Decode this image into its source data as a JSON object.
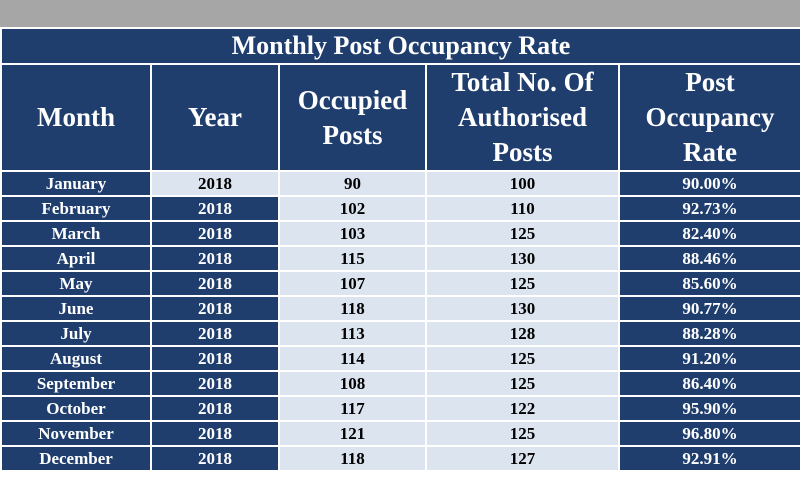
{
  "table": {
    "title": "Monthly Post Occupancy Rate",
    "headers": {
      "month": "Month",
      "year": "Year",
      "occupied": "Occupied Posts",
      "total": "Total No. Of Authorised Posts",
      "rate": "Post Occupancy Rate"
    },
    "rows": [
      {
        "month": "January",
        "year": "2018",
        "occupied": "90",
        "total": "100",
        "rate": "90.00%"
      },
      {
        "month": "February",
        "year": "2018",
        "occupied": "102",
        "total": "110",
        "rate": "92.73%"
      },
      {
        "month": "March",
        "year": "2018",
        "occupied": "103",
        "total": "125",
        "rate": "82.40%"
      },
      {
        "month": "April",
        "year": "2018",
        "occupied": "115",
        "total": "130",
        "rate": "88.46%"
      },
      {
        "month": "May",
        "year": "2018",
        "occupied": "107",
        "total": "125",
        "rate": "85.60%"
      },
      {
        "month": "June",
        "year": "2018",
        "occupied": "118",
        "total": "130",
        "rate": "90.77%"
      },
      {
        "month": "July",
        "year": "2018",
        "occupied": "113",
        "total": "128",
        "rate": "88.28%"
      },
      {
        "month": "August",
        "year": "2018",
        "occupied": "114",
        "total": "125",
        "rate": "91.20%"
      },
      {
        "month": "September",
        "year": "2018",
        "occupied": "108",
        "total": "125",
        "rate": "86.40%"
      },
      {
        "month": "October",
        "year": "2018",
        "occupied": "117",
        "total": "122",
        "rate": "95.90%"
      },
      {
        "month": "November",
        "year": "2018",
        "occupied": "121",
        "total": "125",
        "rate": "96.80%"
      },
      {
        "month": "December",
        "year": "2018",
        "occupied": "118",
        "total": "127",
        "rate": "92.91%"
      }
    ]
  },
  "colors": {
    "header_bg": "#1f3e6e",
    "light_cell_bg": "#dce4f0",
    "top_bar": "#a6a6a6"
  }
}
